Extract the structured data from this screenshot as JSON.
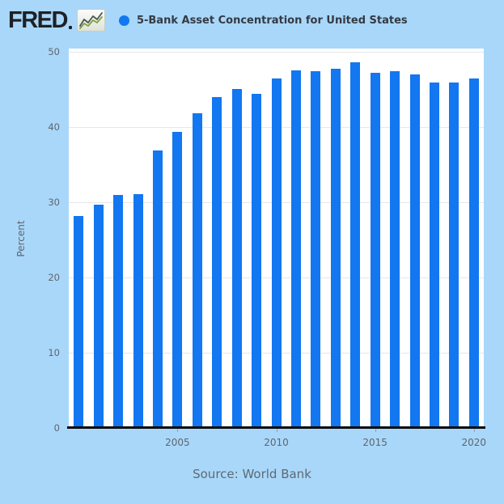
{
  "header": {
    "logo_text": "FRED",
    "series_title": "5-Bank Asset Concentration for United States"
  },
  "footer": {
    "source": "Source: World Bank"
  },
  "colors": {
    "background": "#a9d7f9",
    "bar": "#1277f0",
    "plot_background": "#ffffff",
    "gridline": "#e7e7e7",
    "axis_line": "#0a0a0a",
    "tick_label": "#5f6570",
    "title_text": "#333a44",
    "source_text": "#5d6a74",
    "logo_text_color": "#1d2125",
    "logo_chart_line_green": "#7fa13c",
    "logo_chart_line_dark": "#4e5651"
  },
  "chart_data": {
    "type": "bar",
    "title": "5-Bank Asset Concentration for United States",
    "xlabel": "",
    "ylabel": "Percent",
    "ylim": [
      0,
      50
    ],
    "y_ticks": [
      0,
      10,
      20,
      30,
      40,
      50
    ],
    "x_tick_labels": [
      "2005",
      "2010",
      "2015",
      "2020"
    ],
    "grid": true,
    "legend_position": "top",
    "categories": [
      "2000",
      "2001",
      "2002",
      "2003",
      "2004",
      "2005",
      "2006",
      "2007",
      "2008",
      "2009",
      "2010",
      "2011",
      "2012",
      "2013",
      "2014",
      "2015",
      "2016",
      "2017",
      "2018",
      "2019",
      "2020"
    ],
    "values": [
      28.2,
      29.7,
      31.0,
      31.1,
      36.9,
      39.4,
      41.8,
      44.0,
      45.1,
      44.4,
      46.4,
      47.5,
      47.4,
      47.7,
      48.6,
      47.2,
      47.4,
      47.0,
      45.9,
      45.9,
      46.4
    ]
  }
}
